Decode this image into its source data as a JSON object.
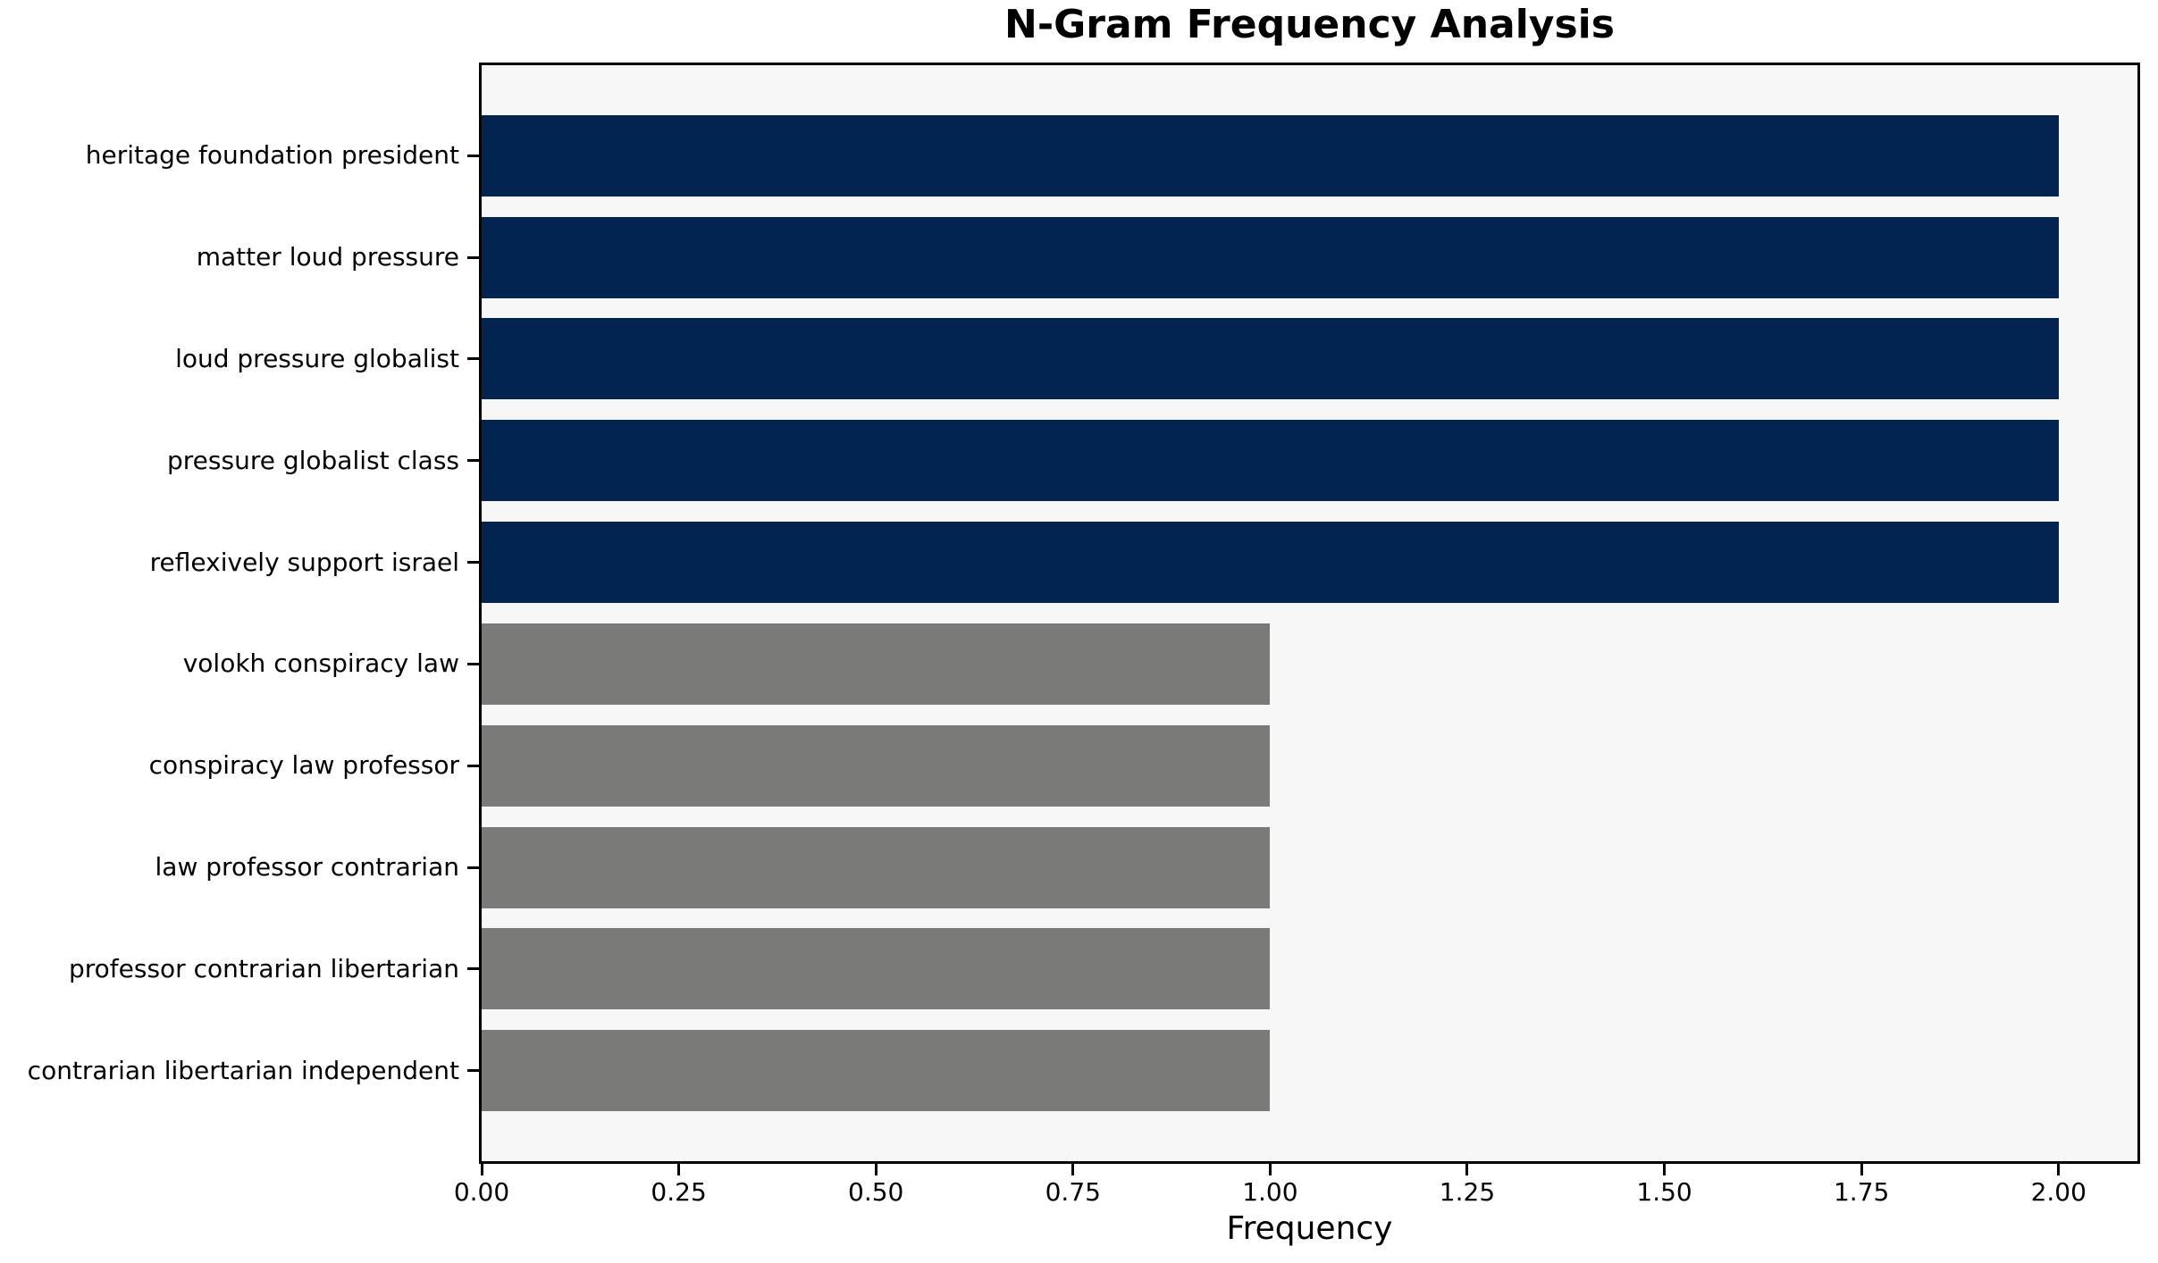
{
  "chart_data": {
    "type": "bar",
    "orientation": "horizontal",
    "title": "N-Gram Frequency Analysis",
    "xlabel": "Frequency",
    "ylabel": "",
    "categories": [
      "heritage foundation president",
      "matter loud pressure",
      "loud pressure globalist",
      "pressure globalist class",
      "reflexively support israel",
      "volokh conspiracy law",
      "conspiracy law professor",
      "law professor contrarian",
      "professor contrarian libertarian",
      "contrarian libertarian independent"
    ],
    "values": [
      2,
      2,
      2,
      2,
      2,
      1,
      1,
      1,
      1,
      1
    ],
    "bar_colors": [
      "#032350",
      "#032350",
      "#032350",
      "#032350",
      "#032350",
      "#7a7a78",
      "#7a7a78",
      "#7a7a78",
      "#7a7a78",
      "#7a7a78"
    ],
    "xlim": [
      0,
      2.1
    ],
    "xticks": [
      {
        "value": 0.0,
        "label": "0.00"
      },
      {
        "value": 0.25,
        "label": "0.25"
      },
      {
        "value": 0.5,
        "label": "0.50"
      },
      {
        "value": 0.75,
        "label": "0.75"
      },
      {
        "value": 1.0,
        "label": "1.00"
      },
      {
        "value": 1.25,
        "label": "1.25"
      },
      {
        "value": 1.5,
        "label": "1.50"
      },
      {
        "value": 1.75,
        "label": "1.75"
      },
      {
        "value": 2.0,
        "label": "2.00"
      }
    ],
    "grid": false,
    "legend": false,
    "bar_height_frac": 0.8,
    "colors": {
      "plot_background": "#f7f7f7",
      "figure_background": "#ffffff",
      "spine": "#000000",
      "text": "#000000",
      "primary_bar": "#032350",
      "secondary_bar": "#7a7a78"
    }
  }
}
